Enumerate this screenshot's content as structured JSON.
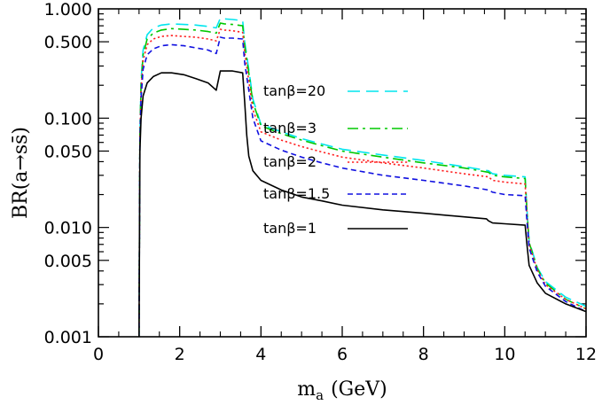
{
  "chart_data": {
    "type": "line",
    "xlabel": "m",
    "xlabel_sub": "a",
    "xlabel_unit": "(GeV)",
    "ylabel": "BR(a→ss̄)",
    "xlim": [
      0,
      12
    ],
    "ylim": [
      0.001,
      1.0
    ],
    "yscale": "log",
    "x_ticks": [
      "0",
      "2",
      "4",
      "6",
      "8",
      "10",
      "12"
    ],
    "y_ticks": [
      "0.001",
      "0.005",
      "0.010",
      "0.050",
      "0.100",
      "0.500",
      "1.000"
    ],
    "legend_position": "center",
    "series": [
      {
        "name": "tanβ=20",
        "color": "#00e5ee",
        "dash": "long-dash",
        "x": [
          1.0,
          1.02,
          1.05,
          1.1,
          1.2,
          1.35,
          1.55,
          1.8,
          2.1,
          2.4,
          2.7,
          2.9,
          3.0,
          3.1,
          3.3,
          3.55,
          3.6,
          3.7,
          3.8,
          4.0,
          4.5,
          5.0,
          5.5,
          6.0,
          7.0,
          8.0,
          9.0,
          9.6,
          9.7,
          10.0,
          10.5,
          10.55,
          10.6,
          10.8,
          11.0,
          11.5,
          12.0
        ],
        "y": [
          0.001,
          0.07,
          0.22,
          0.42,
          0.58,
          0.67,
          0.71,
          0.73,
          0.72,
          0.71,
          0.69,
          0.67,
          0.82,
          0.81,
          0.8,
          0.78,
          0.5,
          0.28,
          0.15,
          0.088,
          0.075,
          0.065,
          0.058,
          0.052,
          0.046,
          0.041,
          0.036,
          0.033,
          0.031,
          0.03,
          0.029,
          0.014,
          0.0075,
          0.0043,
          0.0032,
          0.0023,
          0.0019
        ]
      },
      {
        "name": "tanβ=3",
        "color": "#00c800",
        "dash": "dash-dot",
        "x": [
          1.0,
          1.02,
          1.05,
          1.1,
          1.2,
          1.35,
          1.55,
          1.8,
          2.1,
          2.4,
          2.7,
          2.9,
          3.0,
          3.1,
          3.3,
          3.55,
          3.6,
          3.7,
          3.8,
          4.0,
          4.5,
          5.0,
          5.5,
          6.0,
          7.0,
          8.0,
          9.0,
          9.6,
          9.7,
          10.0,
          10.5,
          10.55,
          10.6,
          10.8,
          11.0,
          11.5,
          12.0
        ],
        "y": [
          0.001,
          0.07,
          0.2,
          0.38,
          0.53,
          0.6,
          0.64,
          0.66,
          0.65,
          0.64,
          0.62,
          0.6,
          0.74,
          0.73,
          0.72,
          0.7,
          0.46,
          0.26,
          0.14,
          0.085,
          0.072,
          0.063,
          0.056,
          0.05,
          0.044,
          0.039,
          0.035,
          0.032,
          0.03,
          0.029,
          0.028,
          0.0135,
          0.0073,
          0.0042,
          0.0031,
          0.0022,
          0.0018
        ]
      },
      {
        "name": "tanβ=2",
        "color": "#ff2020",
        "dash": "dotted",
        "x": [
          1.0,
          1.02,
          1.05,
          1.1,
          1.2,
          1.35,
          1.55,
          1.8,
          2.1,
          2.4,
          2.7,
          2.9,
          3.0,
          3.1,
          3.3,
          3.55,
          3.6,
          3.7,
          3.8,
          4.0,
          4.5,
          5.0,
          5.5,
          6.0,
          7.0,
          8.0,
          9.0,
          9.6,
          9.7,
          10.0,
          10.5,
          10.55,
          10.6,
          10.8,
          11.0,
          11.5,
          12.0
        ],
        "y": [
          0.001,
          0.065,
          0.18,
          0.34,
          0.47,
          0.53,
          0.56,
          0.57,
          0.56,
          0.55,
          0.53,
          0.51,
          0.65,
          0.64,
          0.63,
          0.61,
          0.4,
          0.22,
          0.12,
          0.075,
          0.063,
          0.055,
          0.049,
          0.044,
          0.039,
          0.035,
          0.031,
          0.029,
          0.027,
          0.026,
          0.025,
          0.0125,
          0.007,
          0.0041,
          0.003,
          0.0022,
          0.0018
        ]
      },
      {
        "name": "tanβ=1.5",
        "color": "#1010e0",
        "dash": "short-dash",
        "x": [
          1.0,
          1.02,
          1.05,
          1.1,
          1.2,
          1.35,
          1.55,
          1.8,
          2.1,
          2.4,
          2.7,
          2.9,
          3.0,
          3.1,
          3.3,
          3.55,
          3.6,
          3.7,
          3.8,
          4.0,
          4.5,
          5.0,
          5.5,
          6.0,
          7.0,
          8.0,
          9.0,
          9.6,
          9.7,
          10.0,
          10.5,
          10.55,
          10.6,
          10.8,
          11.0,
          11.5,
          12.0
        ],
        "y": [
          0.001,
          0.06,
          0.15,
          0.28,
          0.38,
          0.43,
          0.46,
          0.47,
          0.46,
          0.44,
          0.42,
          0.39,
          0.55,
          0.54,
          0.54,
          0.53,
          0.32,
          0.18,
          0.1,
          0.062,
          0.051,
          0.044,
          0.039,
          0.035,
          0.03,
          0.027,
          0.024,
          0.022,
          0.021,
          0.02,
          0.0195,
          0.011,
          0.0065,
          0.0039,
          0.0029,
          0.0021,
          0.0017
        ]
      },
      {
        "name": "tanβ=1",
        "color": "#000000",
        "dash": "solid",
        "x": [
          1.0,
          1.02,
          1.05,
          1.1,
          1.2,
          1.35,
          1.55,
          1.8,
          2.1,
          2.4,
          2.7,
          2.9,
          3.0,
          3.1,
          3.3,
          3.55,
          3.6,
          3.65,
          3.7,
          3.8,
          4.0,
          4.5,
          5.0,
          5.5,
          6.0,
          7.0,
          8.0,
          9.0,
          9.55,
          9.6,
          9.7,
          10.0,
          10.5,
          10.55,
          10.6,
          10.8,
          11.0,
          11.5,
          12.0
        ],
        "y": [
          0.001,
          0.05,
          0.1,
          0.16,
          0.21,
          0.24,
          0.26,
          0.26,
          0.25,
          0.23,
          0.21,
          0.18,
          0.27,
          0.27,
          0.27,
          0.26,
          0.14,
          0.07,
          0.045,
          0.033,
          0.027,
          0.022,
          0.019,
          0.0175,
          0.016,
          0.0145,
          0.0135,
          0.0125,
          0.012,
          0.0115,
          0.011,
          0.0108,
          0.0105,
          0.0068,
          0.0045,
          0.0031,
          0.0025,
          0.002,
          0.0017
        ]
      }
    ]
  }
}
